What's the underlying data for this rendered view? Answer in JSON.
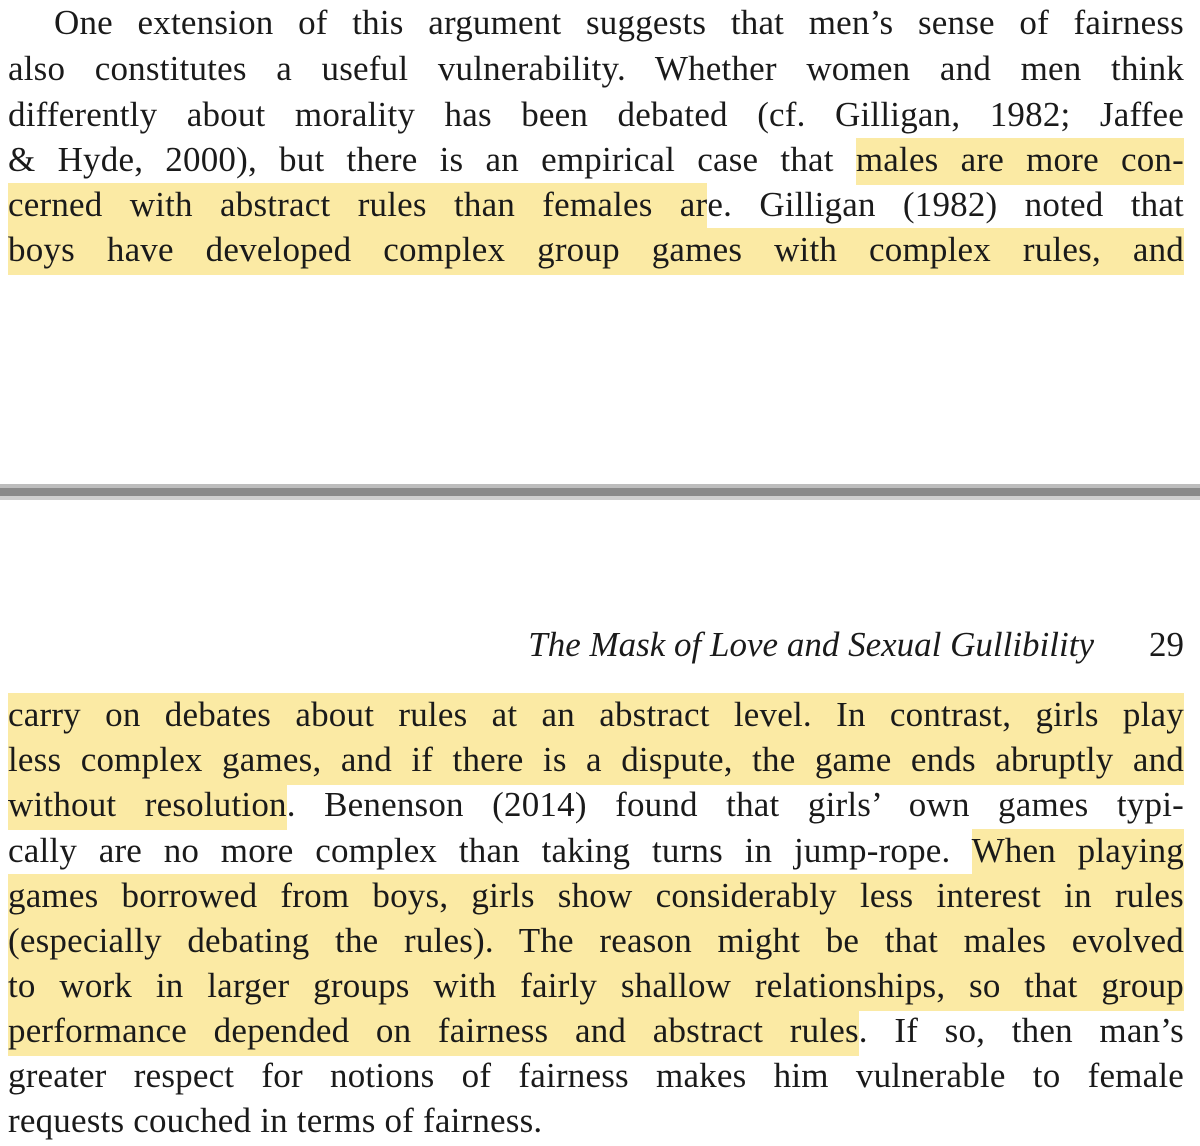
{
  "top_page": {
    "lines": [
      [
        {
          "t": "One extension of this argument suggests that men’s sense of fairness",
          "h": false
        }
      ],
      [
        {
          "t": "also constitutes a useful vulnerability. Whether women and men think",
          "h": false
        }
      ],
      [
        {
          "t": "differently about morality has been debated (cf. Gilligan, 1982; Jaffee",
          "h": false
        }
      ],
      [
        {
          "t": "& Hyde, 2000), but there is an empirical case that ",
          "h": false
        },
        {
          "t": "males are more con-",
          "h": true
        }
      ],
      [
        {
          "t": "cerned with abstract rules than females ar",
          "h": true
        },
        {
          "t": "e. Gilligan (1982) noted that",
          "h": false
        }
      ],
      [
        {
          "t": "boys have developed complex group games with complex rules, and",
          "h": true
        }
      ]
    ]
  },
  "bottom_page": {
    "running_title": "The Mask of Love and Sexual Gullibility",
    "page_number": "29",
    "lines": [
      [
        {
          "t": "carry on debates about rules at an abstract level. In contrast, girls play",
          "h": true
        }
      ],
      [
        {
          "t": "less complex games, and if there is a dispute, the game ends abruptly and",
          "h": true
        }
      ],
      [
        {
          "t": "without resolution",
          "h": true
        },
        {
          "t": ". Benenson (2014) found that girls’ own games typi-",
          "h": false
        }
      ],
      [
        {
          "t": "cally are no more complex than taking turns in jump-rope. ",
          "h": false
        },
        {
          "t": "When playing",
          "h": true
        }
      ],
      [
        {
          "t": "games borrowed from boys, girls show considerably less interest in rules",
          "h": true
        }
      ],
      [
        {
          "t": "(especially debating the rules). The reason might be that males evolved",
          "h": true
        }
      ],
      [
        {
          "t": "to work in larger groups with fairly shallow relationships, so that group",
          "h": true
        }
      ],
      [
        {
          "t": "performance depended on fairness and abstract rules",
          "h": true
        },
        {
          "t": ". If so, then man’s",
          "h": false
        }
      ],
      [
        {
          "t": "greater respect for notions of fairness makes him vulnerable to female",
          "h": false
        }
      ],
      [
        {
          "t": "requests couched in terms of fairness.",
          "h": false
        }
      ]
    ]
  },
  "colors": {
    "highlight": "#fbeaa4",
    "text": "#1a1a1a",
    "divider": "#8a8a8a"
  }
}
